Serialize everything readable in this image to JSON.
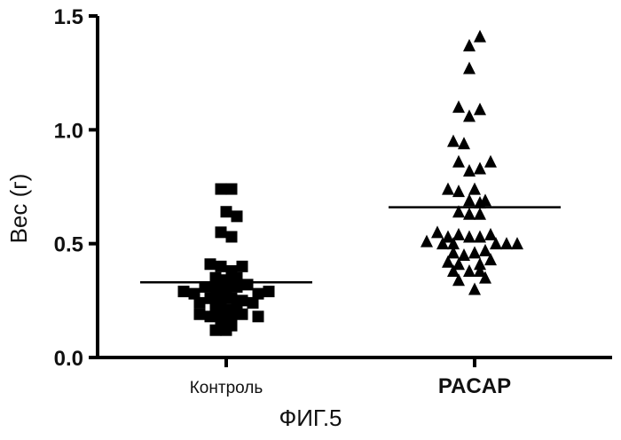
{
  "figure_caption": "ФИГ.5",
  "chart_data": {
    "type": "scatter",
    "ylabel": "Вес (г)",
    "ylim": [
      0,
      1.5
    ],
    "yticks": [
      "0.0",
      "0.5",
      "1.0",
      "1.5"
    ],
    "categories": [
      "Контроль",
      "PACAP"
    ],
    "series": [
      {
        "name": "Контроль",
        "marker": "square",
        "mean": 0.33,
        "points": [
          {
            "dx": -0.5,
            "y": 0.74
          },
          {
            "dx": 0.5,
            "y": 0.74
          },
          {
            "dx": 0.0,
            "y": 0.64
          },
          {
            "dx": 1.0,
            "y": 0.62
          },
          {
            "dx": -0.5,
            "y": 0.55
          },
          {
            "dx": 0.5,
            "y": 0.53
          },
          {
            "dx": -1.5,
            "y": 0.41
          },
          {
            "dx": -0.5,
            "y": 0.4
          },
          {
            "dx": 0.5,
            "y": 0.38
          },
          {
            "dx": 1.5,
            "y": 0.4
          },
          {
            "dx": -1.0,
            "y": 0.35
          },
          {
            "dx": 0.0,
            "y": 0.34
          },
          {
            "dx": 1.0,
            "y": 0.35
          },
          {
            "dx": -2.0,
            "y": 0.31
          },
          {
            "dx": -1.0,
            "y": 0.3
          },
          {
            "dx": 0.0,
            "y": 0.3
          },
          {
            "dx": 1.0,
            "y": 0.31
          },
          {
            "dx": 2.0,
            "y": 0.32
          },
          {
            "dx": -4.0,
            "y": 0.29
          },
          {
            "dx": -3.0,
            "y": 0.28
          },
          {
            "dx": 3.0,
            "y": 0.28
          },
          {
            "dx": 4.0,
            "y": 0.29
          },
          {
            "dx": -1.5,
            "y": 0.26
          },
          {
            "dx": -0.5,
            "y": 0.25
          },
          {
            "dx": 0.5,
            "y": 0.26
          },
          {
            "dx": 1.5,
            "y": 0.25
          },
          {
            "dx": -2.5,
            "y": 0.24
          },
          {
            "dx": 2.5,
            "y": 0.24
          },
          {
            "dx": -1.0,
            "y": 0.22
          },
          {
            "dx": 0.0,
            "y": 0.21
          },
          {
            "dx": 1.0,
            "y": 0.22
          },
          {
            "dx": -2.5,
            "y": 0.19
          },
          {
            "dx": -1.5,
            "y": 0.18
          },
          {
            "dx": -0.5,
            "y": 0.18
          },
          {
            "dx": 0.5,
            "y": 0.18
          },
          {
            "dx": 1.5,
            "y": 0.19
          },
          {
            "dx": 3.0,
            "y": 0.18
          },
          {
            "dx": -0.5,
            "y": 0.14
          },
          {
            "dx": 0.5,
            "y": 0.14
          },
          {
            "dx": 0.0,
            "y": 0.12
          },
          {
            "dx": -1.0,
            "y": 0.12
          }
        ]
      },
      {
        "name": "PACAP",
        "marker": "triangle",
        "mean": 0.66,
        "points": [
          {
            "dx": 0.5,
            "y": 1.41
          },
          {
            "dx": -0.5,
            "y": 1.37
          },
          {
            "dx": -0.5,
            "y": 1.27
          },
          {
            "dx": -1.5,
            "y": 1.1
          },
          {
            "dx": -0.5,
            "y": 1.06
          },
          {
            "dx": 0.5,
            "y": 1.09
          },
          {
            "dx": -2.0,
            "y": 0.95
          },
          {
            "dx": -1.0,
            "y": 0.94
          },
          {
            "dx": -1.5,
            "y": 0.86
          },
          {
            "dx": 0.5,
            "y": 0.83
          },
          {
            "dx": -0.5,
            "y": 0.82
          },
          {
            "dx": 1.5,
            "y": 0.86
          },
          {
            "dx": -2.5,
            "y": 0.74
          },
          {
            "dx": -1.5,
            "y": 0.73
          },
          {
            "dx": 0.0,
            "y": 0.74
          },
          {
            "dx": -0.5,
            "y": 0.69
          },
          {
            "dx": 0.5,
            "y": 0.68
          },
          {
            "dx": 1.0,
            "y": 0.69
          },
          {
            "dx": -1.5,
            "y": 0.64
          },
          {
            "dx": -0.5,
            "y": 0.63
          },
          {
            "dx": 0.5,
            "y": 0.63
          },
          {
            "dx": -3.5,
            "y": 0.55
          },
          {
            "dx": -2.5,
            "y": 0.53
          },
          {
            "dx": -1.5,
            "y": 0.54
          },
          {
            "dx": -0.5,
            "y": 0.53
          },
          {
            "dx": 0.5,
            "y": 0.53
          },
          {
            "dx": 1.5,
            "y": 0.54
          },
          {
            "dx": -4.5,
            "y": 0.51
          },
          {
            "dx": -3.0,
            "y": 0.5
          },
          {
            "dx": -2.0,
            "y": 0.5
          },
          {
            "dx": 2.0,
            "y": 0.5
          },
          {
            "dx": 3.0,
            "y": 0.5
          },
          {
            "dx": 4.0,
            "y": 0.5
          },
          {
            "dx": -2.0,
            "y": 0.46
          },
          {
            "dx": -1.0,
            "y": 0.45
          },
          {
            "dx": 0.0,
            "y": 0.46
          },
          {
            "dx": 1.0,
            "y": 0.47
          },
          {
            "dx": -2.5,
            "y": 0.42
          },
          {
            "dx": -1.5,
            "y": 0.41
          },
          {
            "dx": 0.5,
            "y": 0.41
          },
          {
            "dx": 1.5,
            "y": 0.43
          },
          {
            "dx": -2.0,
            "y": 0.38
          },
          {
            "dx": -0.5,
            "y": 0.38
          },
          {
            "dx": 0.5,
            "y": 0.38
          },
          {
            "dx": -1.5,
            "y": 0.34
          },
          {
            "dx": 1.0,
            "y": 0.35
          },
          {
            "dx": 0.0,
            "y": 0.3
          }
        ]
      }
    ]
  }
}
